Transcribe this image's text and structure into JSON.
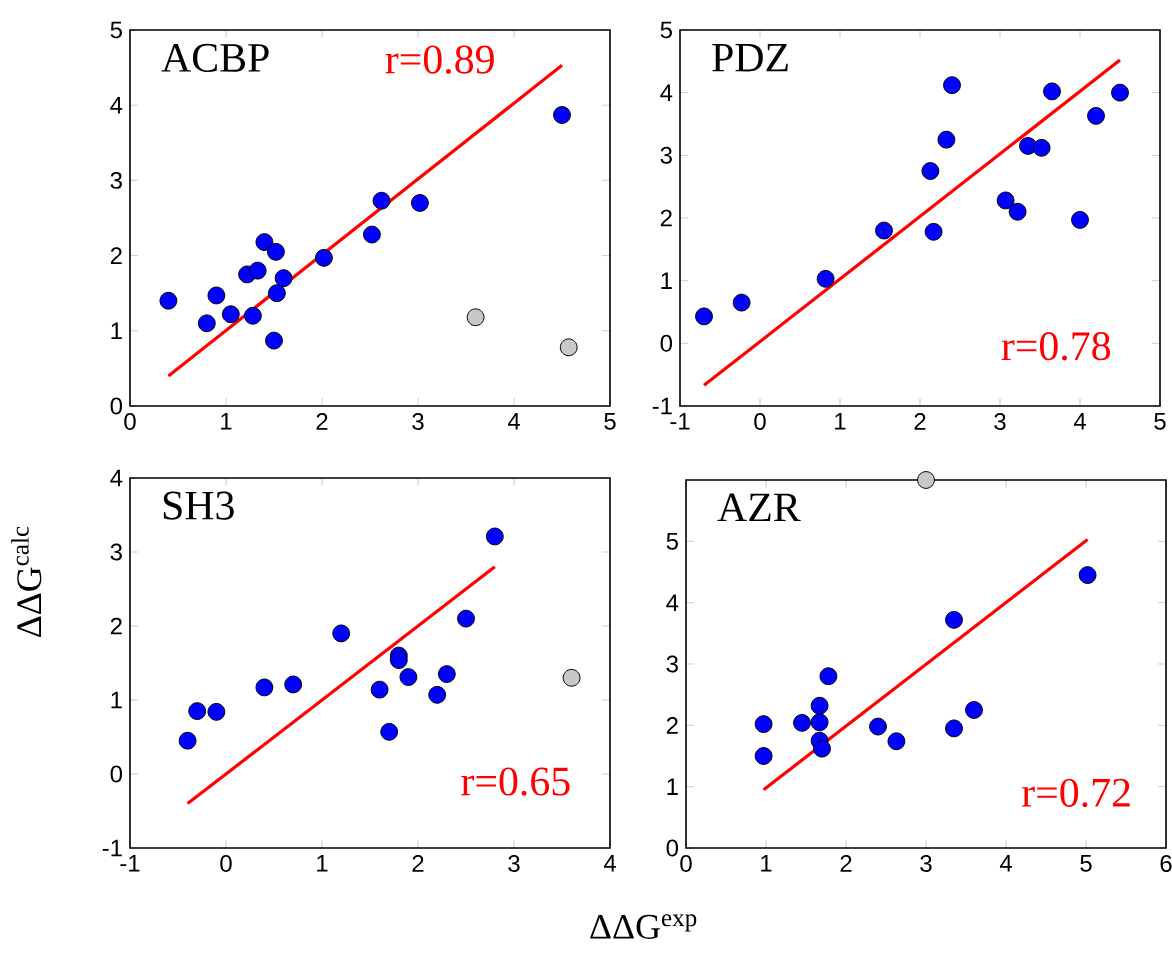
{
  "chart_data": [
    {
      "type": "scatter",
      "title": "ACBP",
      "xlim": [
        0,
        5
      ],
      "ylim": [
        0,
        5
      ],
      "xticks": [
        0,
        1,
        2,
        3,
        4,
        5
      ],
      "yticks": [
        0,
        1,
        2,
        3,
        4,
        5
      ],
      "marker": "circle",
      "annotations": [
        "r=0.89"
      ],
      "series": [
        {
          "color": "#0000ff",
          "x": [
            0.4,
            0.8,
            0.9,
            1.05,
            1.22,
            1.28,
            1.33,
            1.4,
            1.5,
            1.52,
            1.53,
            1.6,
            2.02,
            2.52,
            2.62,
            3.02,
            4.5
          ],
          "values": [
            1.4,
            1.1,
            1.47,
            1.22,
            1.75,
            1.2,
            1.8,
            2.18,
            0.87,
            2.05,
            1.5,
            1.7,
            1.97,
            2.28,
            2.73,
            2.7,
            3.87
          ]
        },
        {
          "color": "#c8c8c8",
          "x": [
            3.6,
            4.57
          ],
          "values": [
            1.18,
            0.78
          ]
        },
        {
          "type": "line",
          "color": "#ff0000",
          "marker": "none",
          "x": [
            0.4,
            4.5
          ],
          "values": [
            0.4,
            4.53
          ]
        }
      ]
    },
    {
      "type": "scatter",
      "title": "PDZ",
      "xlim": [
        -1,
        5
      ],
      "ylim": [
        -1,
        5
      ],
      "xticks": [
        -1,
        0,
        1,
        2,
        3,
        4,
        5
      ],
      "yticks": [
        -1,
        0,
        1,
        2,
        3,
        4,
        5
      ],
      "marker": "circle",
      "annotations": [
        "r=0.78"
      ],
      "series": [
        {
          "color": "#0000ff",
          "x": [
            -0.7,
            -0.23,
            0.82,
            1.55,
            2.13,
            2.17,
            2.33,
            2.4,
            3.07,
            3.22,
            3.35,
            3.52,
            3.65,
            4.0,
            4.2,
            4.5
          ],
          "values": [
            0.43,
            0.65,
            1.03,
            1.8,
            2.75,
            1.78,
            3.25,
            4.12,
            2.28,
            2.1,
            3.15,
            3.12,
            4.02,
            1.97,
            3.63,
            4.0
          ]
        },
        {
          "type": "line",
          "color": "#ff0000",
          "marker": "none",
          "x": [
            -0.7,
            4.5
          ],
          "values": [
            -0.67,
            4.52
          ]
        }
      ]
    },
    {
      "type": "scatter",
      "title": "SH3",
      "xlabel": "ΔΔG$^{exp}$",
      "ylabel": "ΔΔG$^{calc}$",
      "xlim": [
        -1,
        4
      ],
      "ylim": [
        -1,
        4
      ],
      "xticks": [
        -1,
        0,
        1,
        2,
        3,
        4
      ],
      "yticks": [
        -1,
        0,
        1,
        2,
        3,
        4
      ],
      "marker": "circle",
      "annotations": [
        "r=0.65"
      ],
      "series": [
        {
          "color": "#0000ff",
          "x": [
            -0.4,
            -0.3,
            -0.1,
            0.4,
            0.7,
            1.2,
            1.6,
            1.7,
            1.8,
            1.8,
            1.9,
            2.2,
            2.3,
            2.5,
            2.8
          ],
          "values": [
            0.45,
            0.85,
            0.84,
            1.17,
            1.21,
            1.9,
            1.14,
            0.57,
            1.6,
            1.54,
            1.31,
            1.07,
            1.35,
            2.1,
            3.21
          ]
        },
        {
          "color": "#c8c8c8",
          "x": [
            3.6
          ],
          "values": [
            1.3
          ]
        },
        {
          "type": "line",
          "color": "#ff0000",
          "marker": "none",
          "x": [
            -0.4,
            2.8
          ],
          "values": [
            -0.4,
            2.8
          ]
        }
      ]
    },
    {
      "type": "scatter",
      "title": "AZR",
      "xlim": [
        0,
        6
      ],
      "ylim": [
        0,
        6
      ],
      "xticks": [
        0,
        1,
        2,
        3,
        4,
        5,
        6
      ],
      "yticks": [
        0,
        1,
        2,
        3,
        4,
        5
      ],
      "marker": "circle",
      "annotations": [
        "r=0.72"
      ],
      "series": [
        {
          "color": "#0000ff",
          "x": [
            0.97,
            0.97,
            1.45,
            1.67,
            1.67,
            1.67,
            1.7,
            1.78,
            2.4,
            2.63,
            3.35,
            3.35,
            3.6,
            5.02
          ],
          "values": [
            2.02,
            1.5,
            2.04,
            2.32,
            2.05,
            1.75,
            1.62,
            2.8,
            1.98,
            1.74,
            3.72,
            1.95,
            2.25,
            4.45
          ]
        },
        {
          "color": "#c8c8c8",
          "x": [
            3.0
          ],
          "values": [
            6
          ]
        },
        {
          "type": "line",
          "color": "#ff0000",
          "marker": "none",
          "x": [
            0.97,
            5.02
          ],
          "values": [
            0.95,
            5.03
          ]
        }
      ]
    }
  ]
}
